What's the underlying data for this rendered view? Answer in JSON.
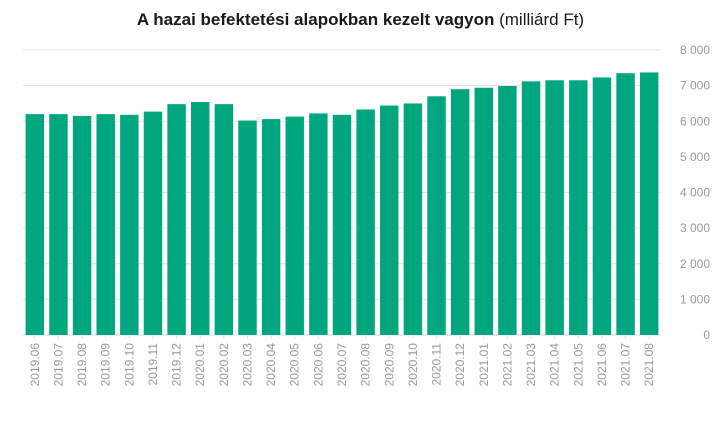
{
  "chart_data": {
    "type": "bar",
    "title": "A hazai befektetési alapokban kezelt vagyon",
    "title_unit": "(milliárd Ft)",
    "xlabel": "",
    "ylabel": "",
    "categories": [
      "2019.06",
      "2019.07",
      "2019.08",
      "2019.09",
      "2019.10",
      "2019.11",
      "2019.12",
      "2020.01",
      "2020.02",
      "2020.03",
      "2020.04",
      "2020.05",
      "2020.06",
      "2020.07",
      "2020.08",
      "2020.09",
      "2020.10",
      "2020.11",
      "2020.12",
      "2021.01",
      "2021.02",
      "2021.03",
      "2021.04",
      "2021.05",
      "2021.06",
      "2021.07",
      "2021.08"
    ],
    "values": [
      6200,
      6200,
      6150,
      6200,
      6180,
      6270,
      6480,
      6540,
      6480,
      6020,
      6060,
      6130,
      6220,
      6180,
      6330,
      6440,
      6500,
      6700,
      6900,
      6940,
      6990,
      7120,
      7150,
      7150,
      7230,
      7350,
      7370
    ],
    "ylim": [
      0,
      8000
    ],
    "yticks": [
      0,
      1000,
      2000,
      3000,
      4000,
      5000,
      6000,
      7000,
      8000
    ],
    "ytick_labels": [
      "0",
      "1 000",
      "2 000",
      "3 000",
      "4 000",
      "5 000",
      "6 000",
      "7 000",
      "8 000"
    ],
    "y_axis_position": "right",
    "grid": true,
    "bar_color": "#00a67e",
    "grid_color": "#e3e3e3",
    "tick_color": "#9a9a9a"
  }
}
